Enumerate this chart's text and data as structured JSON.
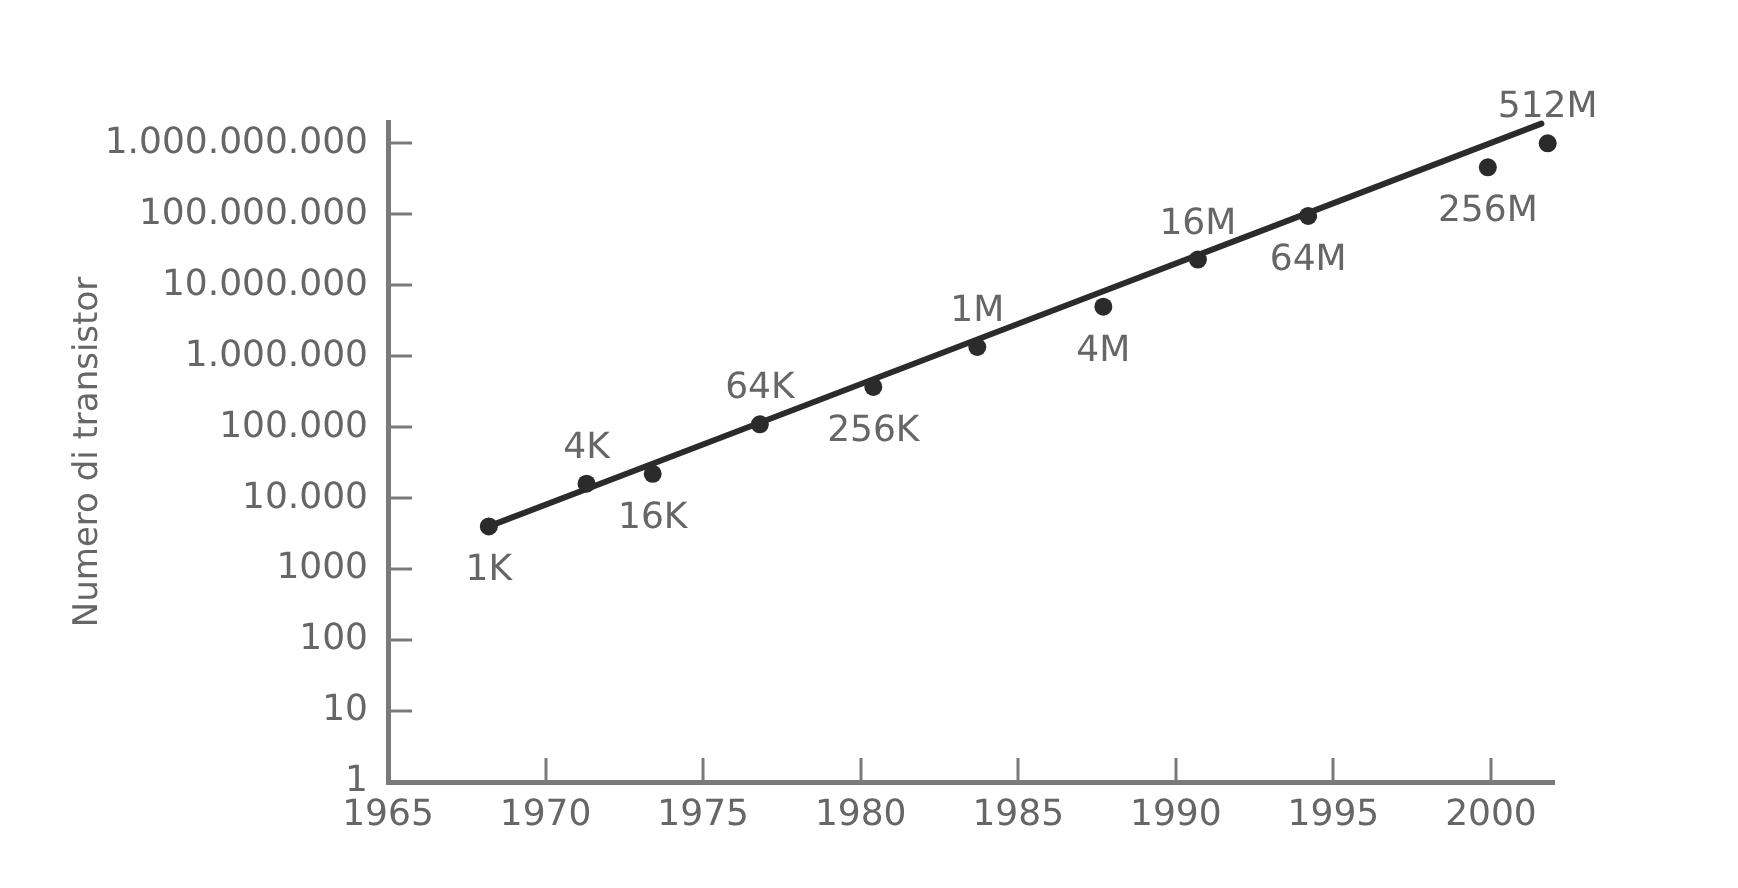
{
  "chart_data": {
    "type": "scatter",
    "ylabel": "Numero di transistor",
    "log": "y",
    "xlim": [
      1965,
      2002
    ],
    "xticks": [
      1965,
      1970,
      1975,
      1980,
      1985,
      1990,
      1995,
      2000
    ],
    "ylim": [
      1,
      2000000000
    ],
    "yticks": [
      1,
      10,
      100,
      1000,
      {
        "value": 10000,
        "label": "10.000"
      },
      {
        "value": 100000,
        "label": "100.000"
      },
      {
        "value": 1000000,
        "label": "1.000.000"
      },
      {
        "value": 10000000,
        "label": "10.000.000"
      },
      {
        "value": 100000000,
        "label": "100.000.000"
      },
      {
        "value": 1000000000,
        "label": "1.000.000.000"
      }
    ],
    "series": [
      {
        "color": "#2b2b2b",
        "marker": "circle",
        "x": [
          1968.2,
          1971.3,
          1973.4,
          1976.8,
          1980.4,
          1983.7,
          1987.7,
          1990.7,
          1994.2,
          1999.9,
          2001.8
        ],
        "values": [
          4000,
          16000,
          22000,
          110000,
          370000,
          1350000,
          5000000,
          23000000,
          95000000,
          460000000,
          1000000000
        ]
      },
      {
        "type": "line",
        "color": "#2b2b2b",
        "marker": "none",
        "x": [
          1968.2,
          2001.6
        ],
        "values": [
          4000,
          1900000000
        ]
      }
    ],
    "annotations": [
      {
        "text": "1K",
        "x": 1968.2,
        "y": 4000
      },
      {
        "text": "4K",
        "x": 1971.3,
        "y": 16000
      },
      {
        "text": "16K",
        "x": 1973.4,
        "y": 22000
      },
      {
        "text": "64K",
        "x": 1976.8,
        "y": 110000
      },
      {
        "text": "256K",
        "x": 1980.4,
        "y": 370000
      },
      {
        "text": "1M",
        "x": 1983.7,
        "y": 1350000
      },
      {
        "text": "4M",
        "x": 1987.7,
        "y": 5000000
      },
      {
        "text": "16M",
        "x": 1990.7,
        "y": 23000000
      },
      {
        "text": "64M",
        "x": 1994.2,
        "y": 95000000
      },
      {
        "text": "256M",
        "x": 1999.9,
        "y": 460000000
      },
      {
        "text": "512M",
        "x": 2001.8,
        "y": 1000000000
      }
    ]
  }
}
